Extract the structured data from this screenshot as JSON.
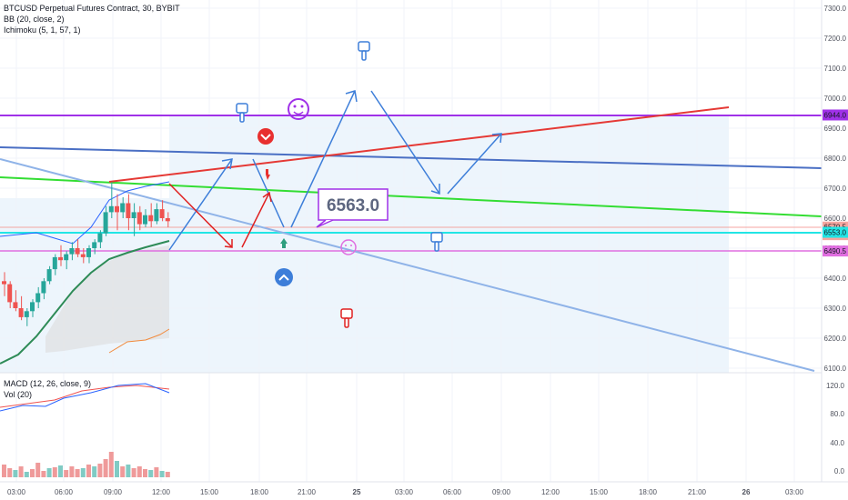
{
  "legend": {
    "symbol": "BTCUSD Perpetual Futures Contract, 30, BYBIT",
    "bb": "BB (20, close, 2)",
    "ichimoku": "Ichimoku (5, 1, 57, 1)"
  },
  "macd_legend": {
    "macd": "MACD (12, 26, close, 9)",
    "vol": "Vol (20)"
  },
  "colors": {
    "up": "#26a69a",
    "down": "#ef5350",
    "purple": "#a031e8",
    "red_line": "#e53935",
    "blue_line": "#4a6fc4",
    "green_line": "#33dd33",
    "cyan": "#22e5e5",
    "magenta": "#e06ee0",
    "arrow_blue": "#3d7ed9",
    "arrow_red": "#e02020"
  },
  "chart_data": {
    "type": "candlestick",
    "price_axis": {
      "min": 6100,
      "max": 7300,
      "ticks": [
        "7300.0",
        "7200.0",
        "7100.0",
        "7000.0",
        "6900.0",
        "6800.0",
        "6700.0",
        "6600.0",
        "6500.0",
        "6400.0",
        "6300.0",
        "6200.0",
        "6100.0"
      ]
    },
    "time_axis": {
      "ticks": [
        "03:00",
        "06:00",
        "09:00",
        "12:00",
        "15:00",
        "18:00",
        "21:00",
        "25",
        "03:00",
        "06:00",
        "09:00",
        "12:00",
        "15:00",
        "18:00",
        "21:00",
        "26",
        "03:00"
      ]
    },
    "price_labels": [
      {
        "text": "6944.0",
        "bg": "#a031e8",
        "value": 6944
      },
      {
        "text": "6570.5",
        "bg": "#f4a6a0",
        "value": 6570.5
      },
      {
        "text": "10:07",
        "bg": "#f4a6a0",
        "value": 6545
      },
      {
        "text": "6553.0",
        "bg": "#22e5e5",
        "value": 6553
      },
      {
        "text": "6490.5",
        "bg": "#e06ee0",
        "value": 6490.5
      }
    ],
    "candles": [
      [
        6390,
        6420,
        6340,
        6380
      ],
      [
        6380,
        6390,
        6300,
        6320
      ],
      [
        6320,
        6360,
        6290,
        6300
      ],
      [
        6300,
        6340,
        6260,
        6270
      ],
      [
        6270,
        6300,
        6240,
        6290
      ],
      [
        6290,
        6330,
        6270,
        6320
      ],
      [
        6320,
        6370,
        6300,
        6350
      ],
      [
        6350,
        6400,
        6330,
        6390
      ],
      [
        6390,
        6440,
        6380,
        6430
      ],
      [
        6430,
        6480,
        6410,
        6470
      ],
      [
        6470,
        6510,
        6440,
        6460
      ],
      [
        6460,
        6490,
        6430,
        6480
      ],
      [
        6480,
        6520,
        6460,
        6500
      ],
      [
        6500,
        6530,
        6470,
        6480
      ],
      [
        6480,
        6500,
        6450,
        6470
      ],
      [
        6470,
        6510,
        6450,
        6500
      ],
      [
        6500,
        6530,
        6480,
        6520
      ],
      [
        6520,
        6560,
        6500,
        6550
      ],
      [
        6550,
        6640,
        6540,
        6620
      ],
      [
        6620,
        6720,
        6600,
        6640
      ],
      [
        6640,
        6680,
        6560,
        6620
      ],
      [
        6620,
        6670,
        6600,
        6650
      ],
      [
        6650,
        6680,
        6560,
        6600
      ],
      [
        6600,
        6650,
        6540,
        6620
      ],
      [
        6620,
        6640,
        6560,
        6580
      ],
      [
        6580,
        6630,
        6570,
        6610
      ],
      [
        6610,
        6650,
        6570,
        6590
      ],
      [
        6590,
        6650,
        6580,
        6630
      ],
      [
        6630,
        6660,
        6590,
        6600
      ],
      [
        6600,
        6620,
        6570,
        6590
      ]
    ],
    "annotation_price": "6563.0",
    "macd_axis": {
      "ticks": [
        "120.0",
        "80.0",
        "40.0",
        "0.0"
      ]
    }
  }
}
